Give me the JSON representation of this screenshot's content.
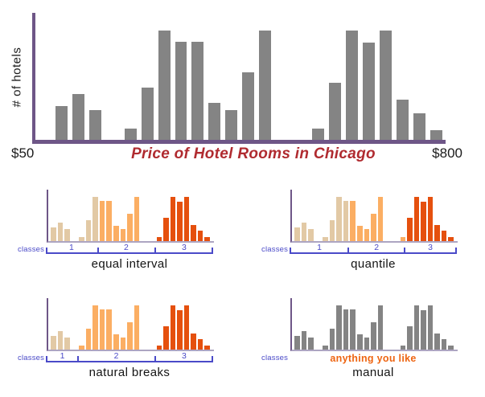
{
  "ui": {
    "classes_label": "classes",
    "class_numbers": [
      "1",
      "2",
      "3"
    ]
  },
  "colors": {
    "bar_gray": "#848484",
    "axis_purple": "#6E5687",
    "mini_baseline_purple": "#ADA5C2",
    "class_1_tan": "#E2C9A5",
    "class_2_orange": "#FBAE63",
    "class_3_dark_orange": "#E5500E",
    "bracket_blue": "#4A4AC8",
    "title_red": "#B02B30",
    "note_orange": "#EE6512"
  },
  "chart_data": {
    "type": "bar",
    "shared_histogram": {
      "n_bars": 20,
      "relative_heights": [
        0.31,
        0.42,
        0.27,
        0.1,
        0.48,
        1.0,
        0.9,
        0.9,
        0.34,
        0.27,
        0.62,
        1.0,
        0.1,
        0.52,
        1.0,
        0.89,
        1.0,
        0.37,
        0.24,
        0.09
      ],
      "group_gap_after_bars": [
        3,
        12
      ],
      "x_range_labels": [
        "$50",
        "$800"
      ],
      "y_axis_numeric_labels": "none"
    },
    "charts": [
      {
        "id": "main",
        "title": "Price of Hotel Rooms in Chicago",
        "ylabel": "# of hotels",
        "coloring": "gray"
      },
      {
        "id": "equal-interval",
        "label": "equal interval",
        "class_bar_counts": [
          6,
          6,
          8
        ],
        "tick_pcts": [
          0,
          30.9,
          65.5,
          100
        ],
        "number_pcts": [
          15,
          48,
          83
        ]
      },
      {
        "id": "quantile",
        "label": "quantile",
        "class_bar_counts": [
          7,
          6,
          7
        ],
        "tick_pcts": [
          0,
          35,
          69,
          100
        ],
        "number_pcts": [
          17.5,
          52,
          84.5
        ]
      },
      {
        "id": "natural-breaks",
        "label": "natural breaks",
        "class_bar_counts": [
          3,
          9,
          8
        ],
        "tick_pcts": [
          0,
          18.9,
          65.5,
          100
        ],
        "number_pcts": [
          9.5,
          42,
          83
        ]
      },
      {
        "id": "manual",
        "label": "manual",
        "note": "anything you like",
        "coloring": "gray"
      }
    ]
  }
}
